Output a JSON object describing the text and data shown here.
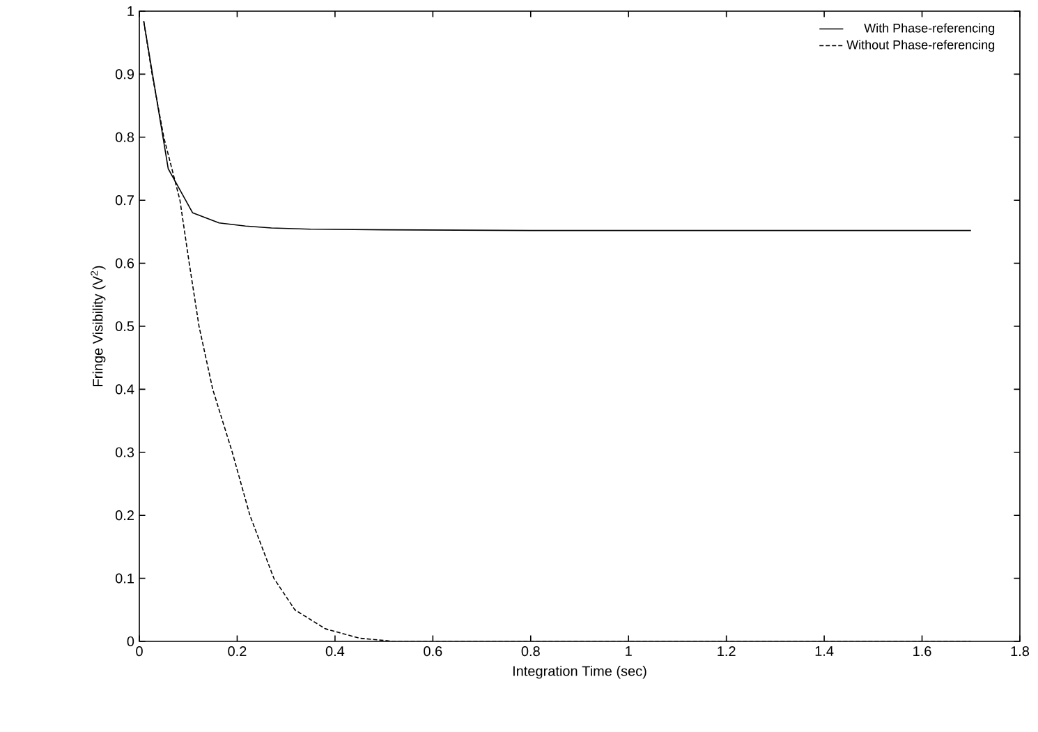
{
  "chart_data": {
    "type": "line",
    "xlabel": "Integration Time (sec)",
    "ylabel": "Fringe Visibility (V$^{2}$)",
    "xlim": [
      0,
      1.8
    ],
    "ylim": [
      0,
      1
    ],
    "xticks": [
      0,
      0.2,
      0.4,
      0.6,
      0.8,
      1,
      1.2,
      1.4,
      1.6,
      1.8
    ],
    "yticks": [
      0,
      0.1,
      0.2,
      0.3,
      0.4,
      0.5,
      0.6,
      0.7,
      0.8,
      0.9,
      1
    ],
    "grid": false,
    "legend": "top right",
    "marker": "none",
    "series": [
      {
        "name": "With Phase-referencing",
        "color": "#000000",
        "line_style": "solid",
        "x": [
          0.009,
          0.059,
          0.109,
          0.163,
          0.217,
          0.27,
          0.35,
          0.5,
          0.8,
          1.2,
          1.7
        ],
        "values": [
          0.984,
          0.75,
          0.68,
          0.664,
          0.659,
          0.656,
          0.654,
          0.653,
          0.652,
          0.652,
          0.652
        ]
      },
      {
        "name": "Without Phase-referencing",
        "color": "#000000",
        "line_style": "dashed",
        "x": [
          0.009,
          0.026,
          0.05,
          0.083,
          0.102,
          0.122,
          0.15,
          0.19,
          0.226,
          0.275,
          0.318,
          0.38,
          0.45,
          0.52,
          0.6,
          1.0,
          1.7
        ],
        "values": [
          0.984,
          0.9,
          0.8,
          0.7,
          0.6,
          0.5,
          0.4,
          0.3,
          0.2,
          0.1,
          0.05,
          0.02,
          0.005,
          0,
          0,
          0,
          0
        ]
      }
    ]
  }
}
